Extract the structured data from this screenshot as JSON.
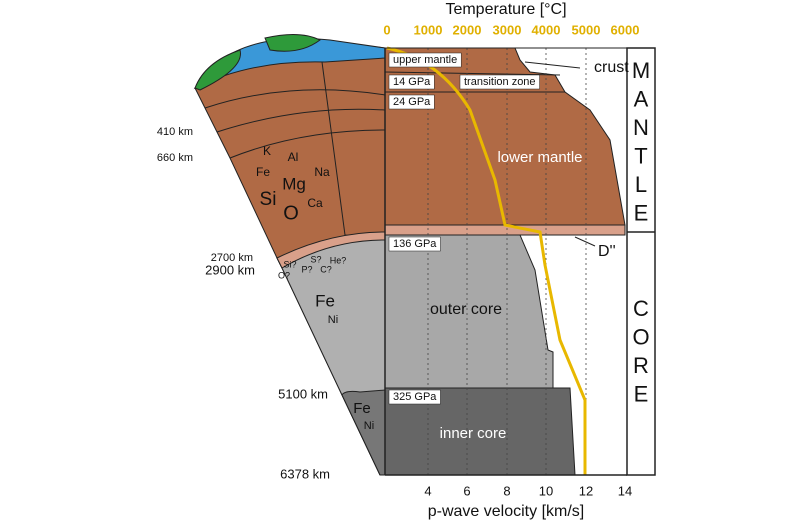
{
  "top_axis": {
    "title": "Temperature [°C]",
    "ticks": [
      "0",
      "1000",
      "2000",
      "3000",
      "4000",
      "5000",
      "6000"
    ]
  },
  "bottom_axis": {
    "title": "p-wave velocity [km/s]",
    "ticks": [
      "4",
      "6",
      "8",
      "10",
      "12",
      "14"
    ]
  },
  "depths": [
    "410 km",
    "660 km",
    "2700 km",
    "2900 km",
    "5100 km",
    "6378 km"
  ],
  "mantle_elements": [
    "K",
    "Al",
    "Fe",
    "Mg",
    "Na",
    "Si",
    "Ca",
    "O"
  ],
  "core_light_elements": [
    "Si?",
    "S?",
    "He?",
    "O?",
    "P?",
    "C?"
  ],
  "outer_core_elements": [
    "Fe",
    "Ni"
  ],
  "inner_core_elements": [
    "Fe",
    "Ni"
  ],
  "layers": {
    "upper_mantle": "upper mantle",
    "p1": "14 GPa",
    "transition": "transition zone",
    "p2": "24 GPa",
    "lower_mantle": "lower mantle",
    "p3": "136 GPa",
    "outer_core": "outer core",
    "p4": "325 GPa",
    "inner_core": "inner core"
  },
  "callouts": {
    "crust": "crust",
    "d2": "D''"
  },
  "side_labels": {
    "mantle": [
      "M",
      "A",
      "N",
      "T",
      "L",
      "E"
    ],
    "core": [
      "C",
      "O",
      "R",
      "E"
    ]
  }
}
